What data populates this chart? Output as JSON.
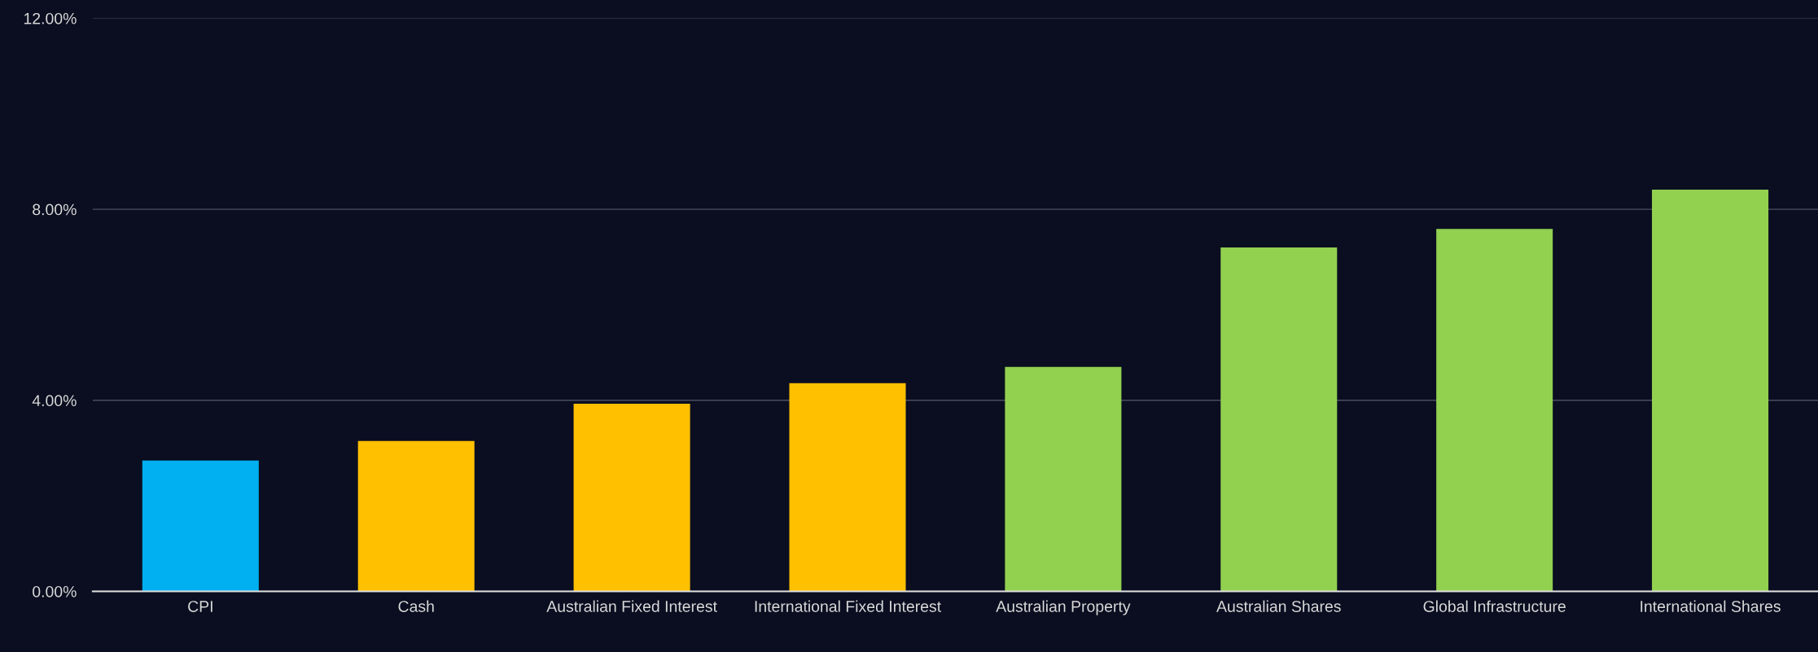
{
  "chart_data": {
    "type": "bar",
    "categories": [
      "CPI",
      "Cash",
      "Australian Fixed Interest",
      "International Fixed Interest",
      "Australian Property",
      "Australian Shares",
      "Global Infrastructure",
      "International Shares"
    ],
    "values": [
      2.74,
      3.15,
      3.93,
      4.36,
      4.7,
      7.2,
      7.59,
      8.41
    ],
    "colors": [
      "#00b0f0",
      "#ffc000",
      "#ffc000",
      "#ffc000",
      "#92d050",
      "#92d050",
      "#92d050",
      "#92d050"
    ],
    "ylim": [
      0,
      12
    ],
    "yticks": [
      {
        "value": 0,
        "label": "0.00%"
      },
      {
        "value": 4,
        "label": "4.00%"
      },
      {
        "value": 8,
        "label": "8.00%"
      },
      {
        "value": 12,
        "label": "12.00%"
      }
    ],
    "grid": "y"
  }
}
